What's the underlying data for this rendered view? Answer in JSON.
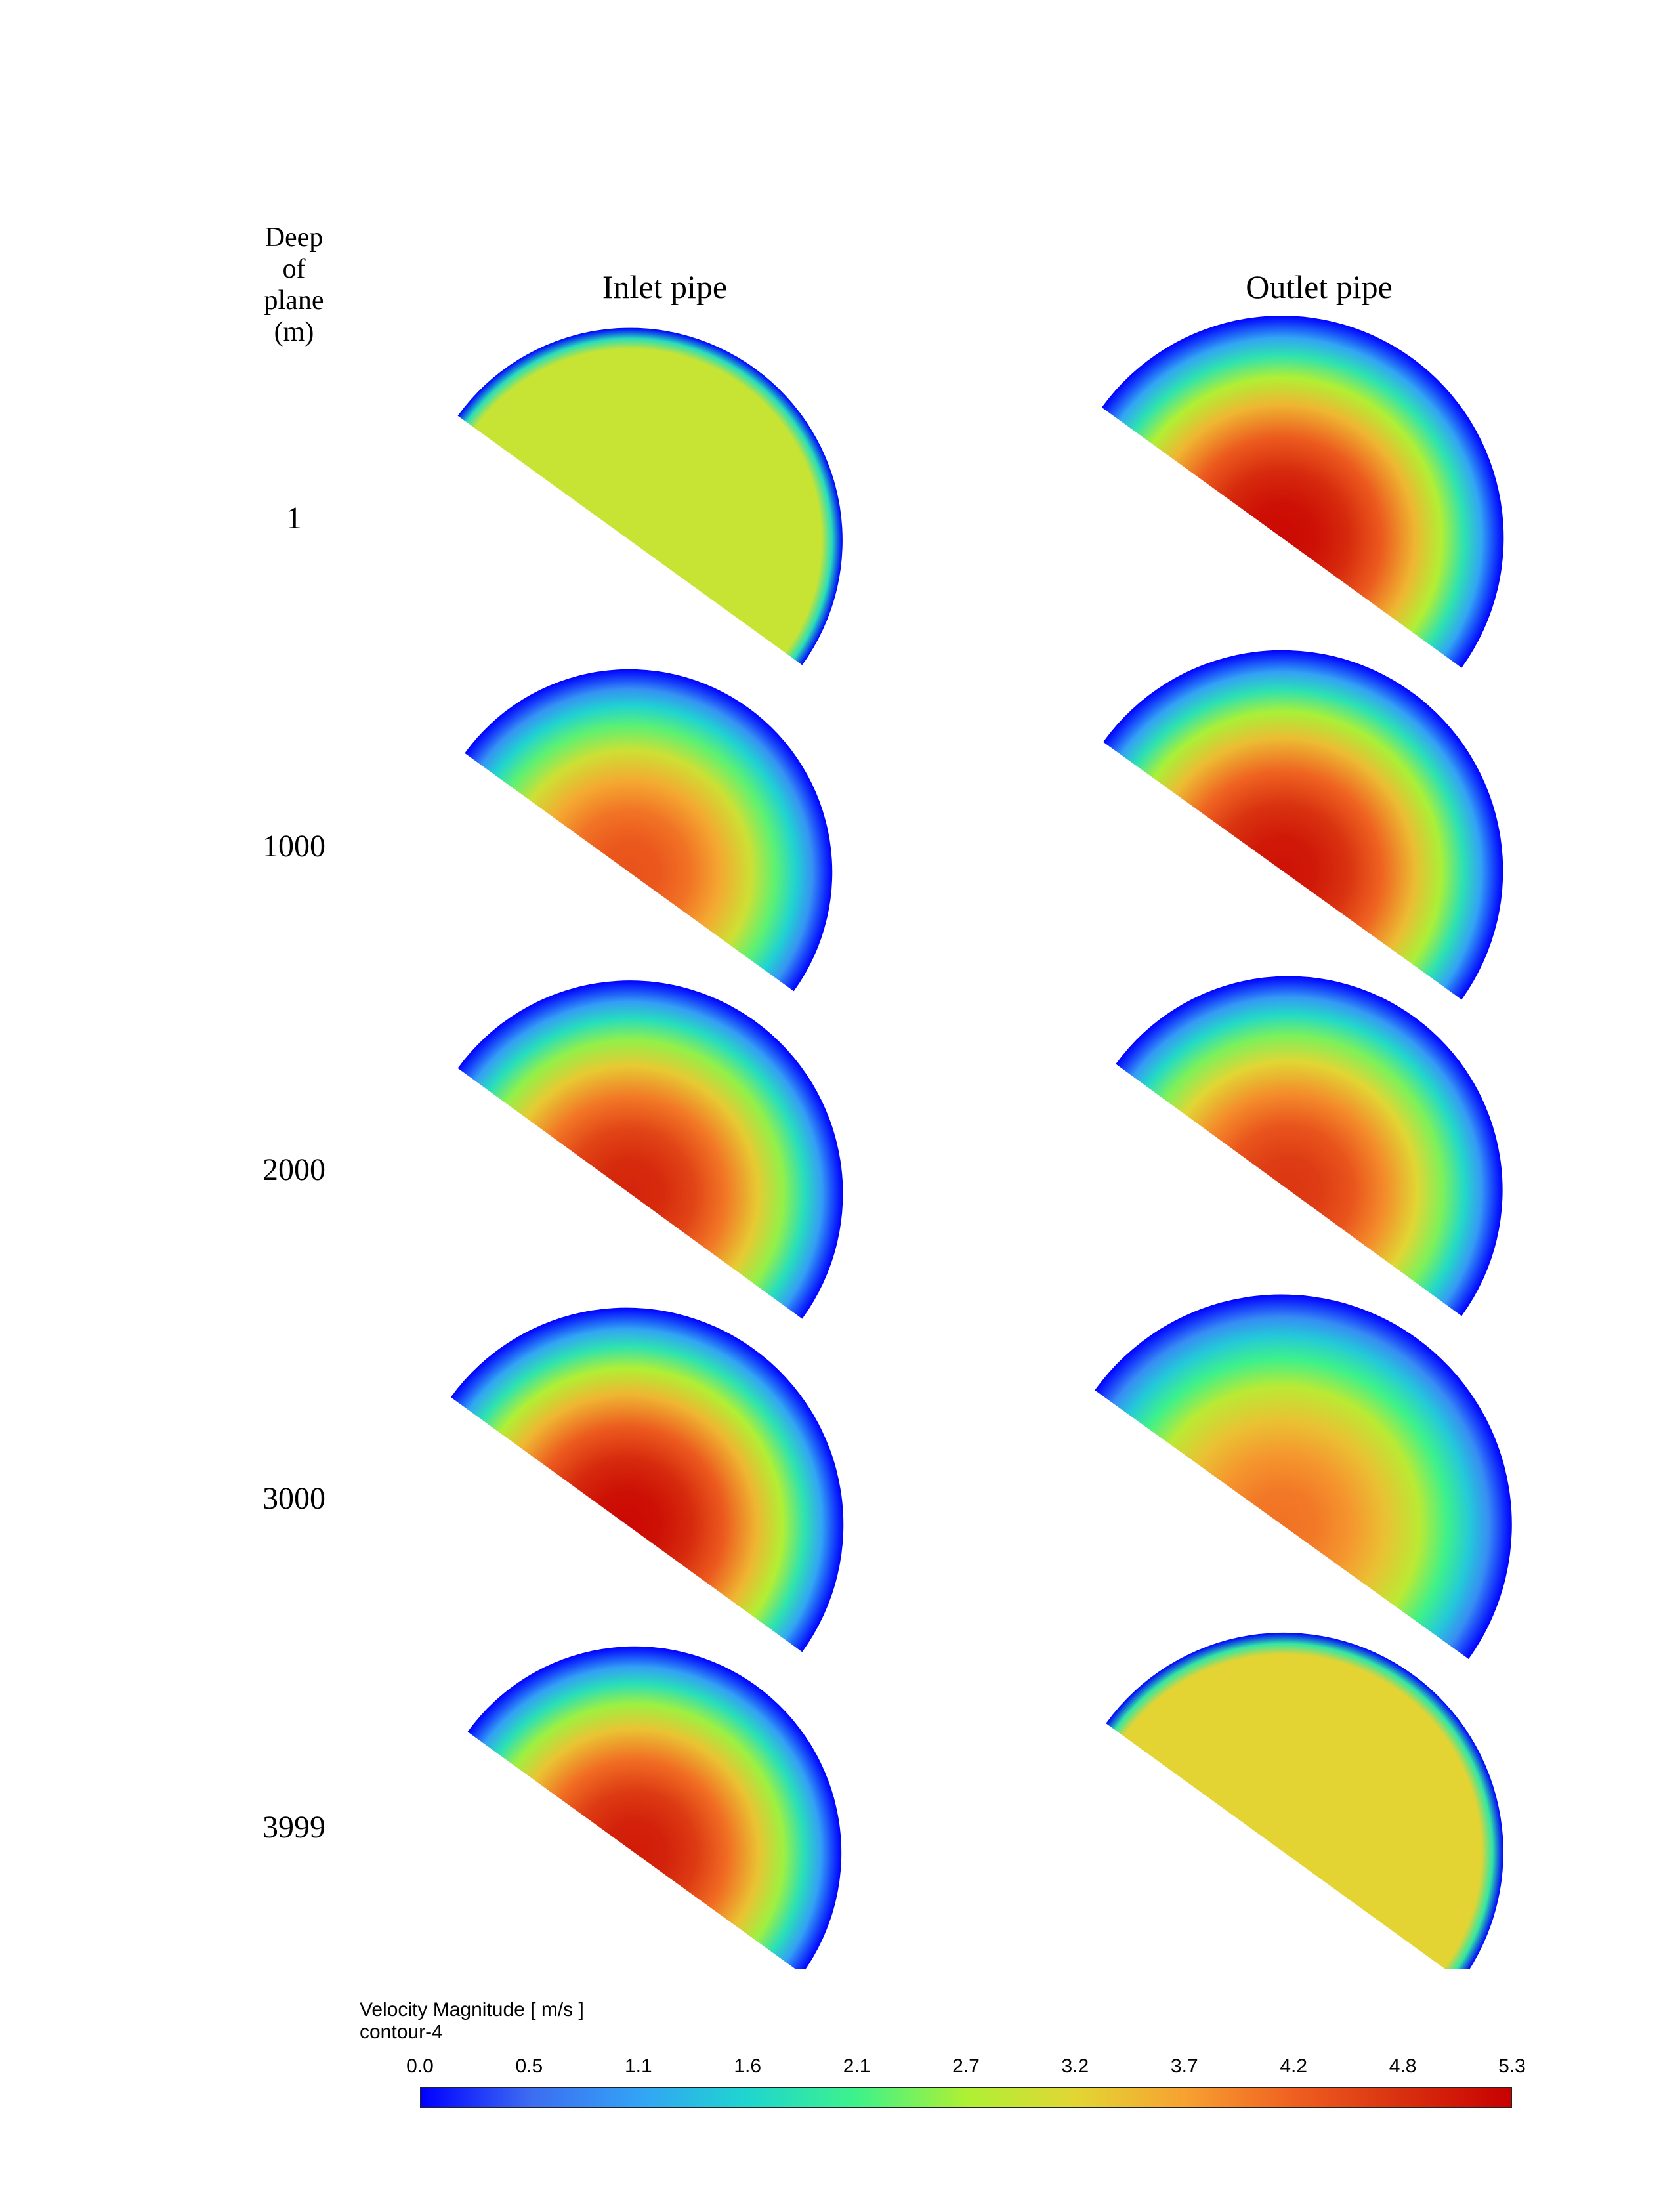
{
  "row_header": [
    "Deep",
    "of",
    "plane",
    "(m)"
  ],
  "columns": [
    "Inlet pipe",
    "Outlet pipe"
  ],
  "chart_data": {
    "type": "heatmap",
    "title": "Velocity Magnitude [ m/s ]",
    "subtitle": "contour-4",
    "rows": [
      {
        "depth": "1",
        "inlet": {
          "peak": 2.9,
          "profile": "uniform"
        },
        "outlet": {
          "peak": 5.2,
          "profile": "developed"
        }
      },
      {
        "depth": "1000",
        "inlet": {
          "peak": 4.4,
          "profile": "developed"
        },
        "outlet": {
          "peak": 5.1,
          "profile": "developed"
        }
      },
      {
        "depth": "2000",
        "inlet": {
          "peak": 4.9,
          "profile": "developed"
        },
        "outlet": {
          "peak": 4.7,
          "profile": "developed"
        }
      },
      {
        "depth": "3000",
        "inlet": {
          "peak": 5.2,
          "profile": "developed"
        },
        "outlet": {
          "peak": 4.1,
          "profile": "developed"
        }
      },
      {
        "depth": "3999",
        "inlet": {
          "peak": 5.0,
          "profile": "developed"
        },
        "outlet": {
          "peak": 3.2,
          "profile": "uniform"
        }
      }
    ],
    "colorbar": {
      "min": 0.0,
      "max": 5.3,
      "ticks": [
        "0.0",
        "0.5",
        "1.1",
        "1.6",
        "2.1",
        "2.7",
        "3.2",
        "3.7",
        "4.2",
        "4.8",
        "5.3"
      ],
      "colors": [
        "#0000ff",
        "#3d6cf2",
        "#33a3f5",
        "#1fd6cf",
        "#3ef28a",
        "#aef034",
        "#e2d634",
        "#f7a231",
        "#ef6020",
        "#d8300f",
        "#c80000"
      ]
    }
  }
}
